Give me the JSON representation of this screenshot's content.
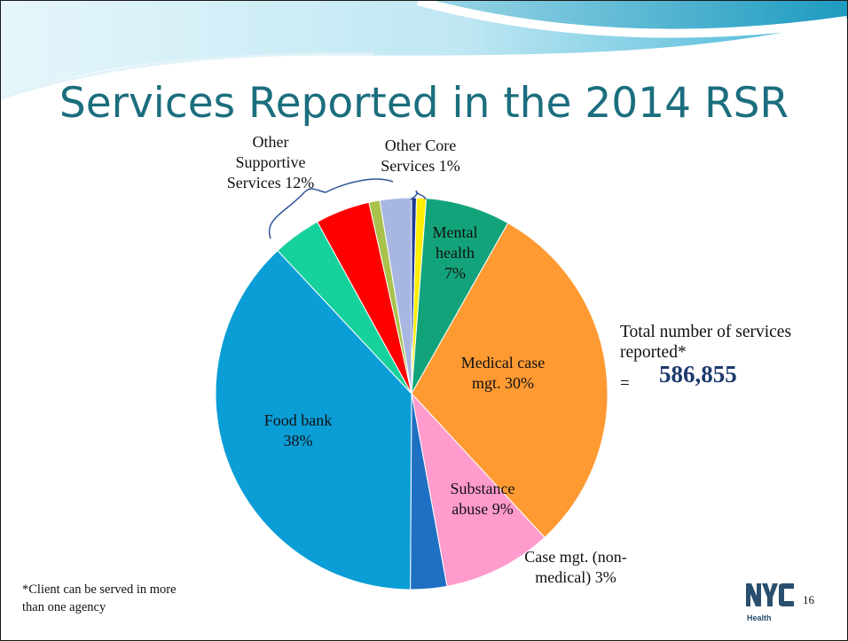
{
  "title": "Services Reported in the 2014 RSR",
  "total": {
    "label": "Total number of services reported*",
    "equals": "=",
    "value": "586,855"
  },
  "footnote": "*Client can be served in more than one agency",
  "page_number": "16",
  "logo": {
    "text": "NYC",
    "caption": "Health",
    "color": "#2a4f6e"
  },
  "chart_data": {
    "type": "pie",
    "title": "",
    "start_angle_deg": 0,
    "direction": "clockwise",
    "slices": [
      {
        "key": "other-core-1",
        "value": 0.4,
        "color": "#1f3a93"
      },
      {
        "key": "other-core-2",
        "value": 0.8,
        "color": "#ffee00"
      },
      {
        "key": "mental-health",
        "value": 7,
        "color": "#12a37a"
      },
      {
        "key": "medical-case-mgt",
        "value": 30,
        "color": "#ff9a33"
      },
      {
        "key": "substance-abuse",
        "value": 9,
        "color": "#ff9bcd"
      },
      {
        "key": "case-mgt-non-medical",
        "value": 3,
        "color": "#1f6fc3"
      },
      {
        "key": "food-bank",
        "value": 38,
        "color": "#0a9dd6"
      },
      {
        "key": "supportive-1",
        "value": 4,
        "color": "#16d19c"
      },
      {
        "key": "supportive-2",
        "value": 4.5,
        "color": "#ff0000"
      },
      {
        "key": "supportive-3",
        "value": 0.9,
        "color": "#a9c24d"
      },
      {
        "key": "supportive-4",
        "value": 2.6,
        "color": "#a8b6e2"
      }
    ],
    "labels": {
      "mental_health": {
        "text": "Mental health 7%"
      },
      "medical": {
        "text": "Medical case mgt. 30%"
      },
      "substance": {
        "text": "Substance abuse 9%"
      },
      "case_mgt": {
        "text": "Case mgt. (non-medical) 3%"
      },
      "food_bank": {
        "text": "Food bank 38%"
      },
      "other_supportive": {
        "text": "Other Supportive Services 12%"
      },
      "other_core": {
        "text": "Other Core Services 1%"
      }
    }
  }
}
